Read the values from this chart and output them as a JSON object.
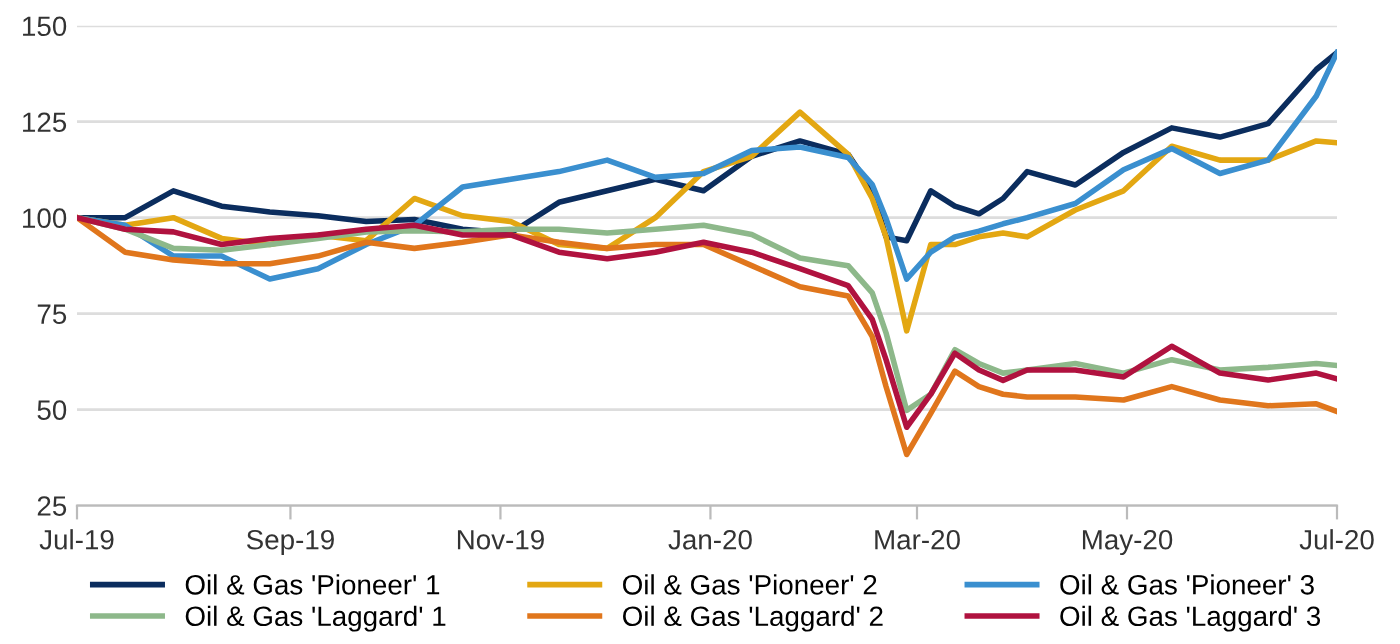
{
  "chart_data": {
    "type": "line",
    "x": [
      "2019-07-01",
      "2019-07-15",
      "2019-07-29",
      "2019-08-12",
      "2019-08-26",
      "2019-09-09",
      "2019-09-23",
      "2019-10-07",
      "2019-10-21",
      "2019-11-04",
      "2019-11-18",
      "2019-12-02",
      "2019-12-16",
      "2019-12-30",
      "2020-01-13",
      "2020-01-27",
      "2020-02-10",
      "2020-02-17",
      "2020-02-21",
      "2020-02-27",
      "2020-03-05",
      "2020-03-12",
      "2020-03-19",
      "2020-03-26",
      "2020-04-02",
      "2020-04-16",
      "2020-04-30",
      "2020-05-14",
      "2020-05-28",
      "2020-06-11",
      "2020-06-25",
      "2020-07-01"
    ],
    "series": [
      {
        "name": "Oil & Gas 'Pioneer' 1",
        "color": "#0b2d5e",
        "values": [
          100,
          100,
          107,
          103,
          101.5,
          100.5,
          99,
          99.5,
          97,
          96,
          104,
          107,
          110,
          107,
          116,
          120,
          116.5,
          107,
          95,
          94,
          107,
          103,
          101,
          105,
          112,
          108.5,
          117,
          123.4,
          121,
          124.5,
          138.6,
          143
        ]
      },
      {
        "name": "Oil & Gas 'Pioneer' 2",
        "color": "#e3a712",
        "values": [
          100,
          98,
          100,
          94.6,
          93,
          95.4,
          94,
          105,
          100.5,
          99,
          93,
          92,
          100,
          112,
          116,
          127.5,
          116.5,
          105,
          95,
          70.5,
          93,
          93,
          95,
          96,
          95,
          102,
          107,
          118.6,
          115,
          115,
          120,
          119.5
        ]
      },
      {
        "name": "Oil & Gas 'Pioneer' 3",
        "color": "#3a8fcf",
        "values": [
          100,
          98,
          90,
          90,
          84,
          86.7,
          93,
          98,
          108,
          110,
          112,
          115,
          110.5,
          111.5,
          117.5,
          118.4,
          115.7,
          108.6,
          99.8,
          84,
          91,
          95,
          96.5,
          98.4,
          100,
          103.7,
          112.5,
          118,
          111.5,
          115,
          131.7,
          143
        ]
      },
      {
        "name": "Oil & Gas 'Laggard' 1",
        "color": "#8db88a",
        "values": [
          100,
          97,
          92,
          91.5,
          93,
          94.6,
          96.3,
          96.6,
          96.3,
          97,
          97,
          96,
          97,
          98,
          95.6,
          89.5,
          87.5,
          80.4,
          70,
          49.8,
          54,
          65.6,
          62,
          59.5,
          60.3,
          62,
          59.5,
          63,
          60.3,
          61,
          62,
          61.5
        ]
      },
      {
        "name": "Oil & Gas 'Laggard' 2",
        "color": "#e0761c",
        "values": [
          100,
          91,
          89,
          88,
          88,
          90,
          93.6,
          92,
          93.6,
          95.5,
          93.6,
          92,
          93,
          93,
          87.5,
          82,
          79.6,
          69,
          56,
          38.3,
          49,
          60,
          56,
          54,
          53.3,
          53.3,
          52.5,
          56,
          52.5,
          51,
          51.5,
          49.5
        ]
      },
      {
        "name": "Oil & Gas 'Laggard' 3",
        "color": "#b0123f",
        "values": [
          100,
          97,
          96.3,
          93,
          94.6,
          95.5,
          97,
          98,
          95.5,
          95.5,
          91,
          89.3,
          91,
          93.6,
          91,
          86.7,
          82.3,
          73.5,
          63,
          45.4,
          54,
          64.7,
          60.3,
          57.6,
          60.3,
          60.3,
          58.5,
          66.5,
          59.5,
          57.7,
          59.5,
          58
        ]
      }
    ],
    "xlim": [
      "2019-07-01",
      "2020-07-01"
    ],
    "xticks": [
      {
        "value": "2019-07-01",
        "label": "Jul-19"
      },
      {
        "value": "2019-09-01",
        "label": "Sep-19"
      },
      {
        "value": "2019-11-01",
        "label": "Nov-19"
      },
      {
        "value": "2020-01-01",
        "label": "Jan-20"
      },
      {
        "value": "2020-03-01",
        "label": "Mar-20"
      },
      {
        "value": "2020-05-01",
        "label": "May-20"
      },
      {
        "value": "2020-07-01",
        "label": "Jul-20"
      }
    ],
    "ylim": [
      25,
      150
    ],
    "yticks": [
      25,
      50,
      75,
      100,
      125,
      150
    ],
    "grid": "y",
    "legend": "bottom",
    "marker": "none",
    "line_style": "solid"
  }
}
